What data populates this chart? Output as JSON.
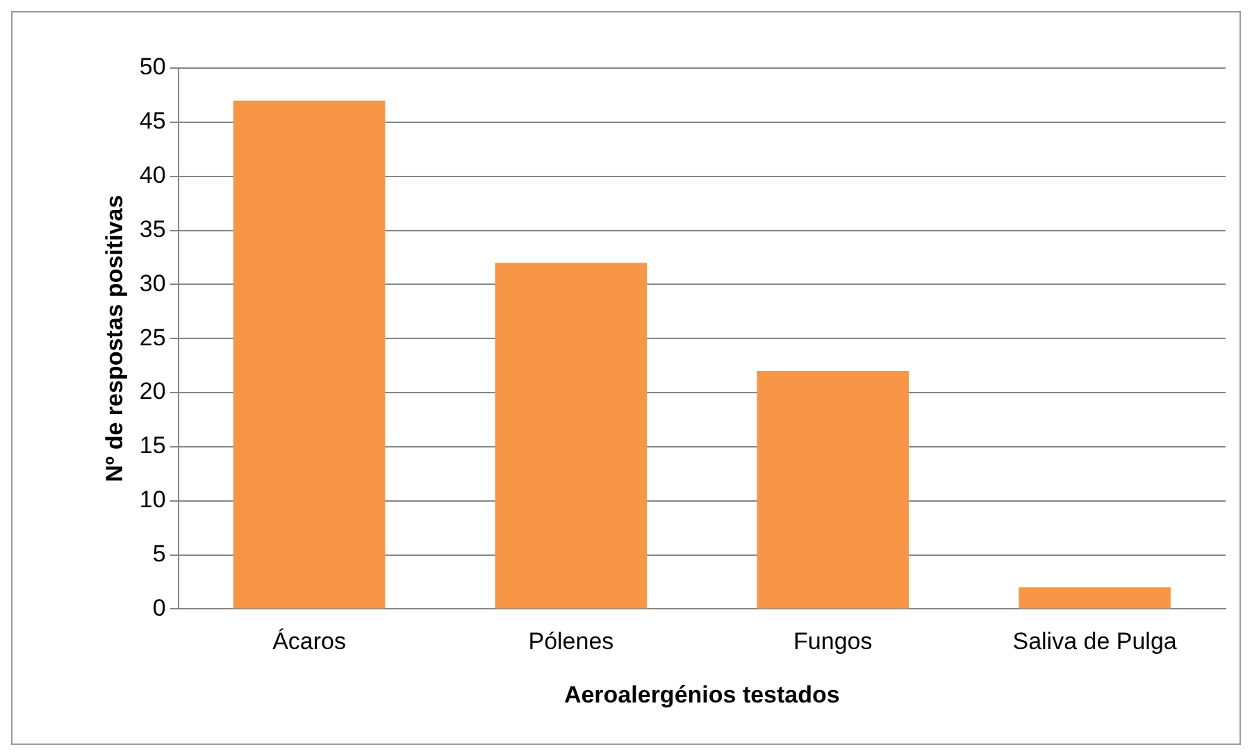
{
  "chart_data": {
    "type": "bar",
    "xlabel": "Aeroalergénios testados",
    "ylabel": "Nº de respostas positivas",
    "categories": [
      "Ácaros",
      "Pólenes",
      "Fungos",
      "Saliva de Pulga"
    ],
    "values": [
      47,
      32,
      22,
      2
    ],
    "color": "#f79646",
    "ylim": [
      0,
      50
    ],
    "yticks": [
      0,
      5,
      10,
      15,
      20,
      25,
      30,
      35,
      40,
      45,
      50
    ],
    "grid": "y",
    "legend": false
  }
}
